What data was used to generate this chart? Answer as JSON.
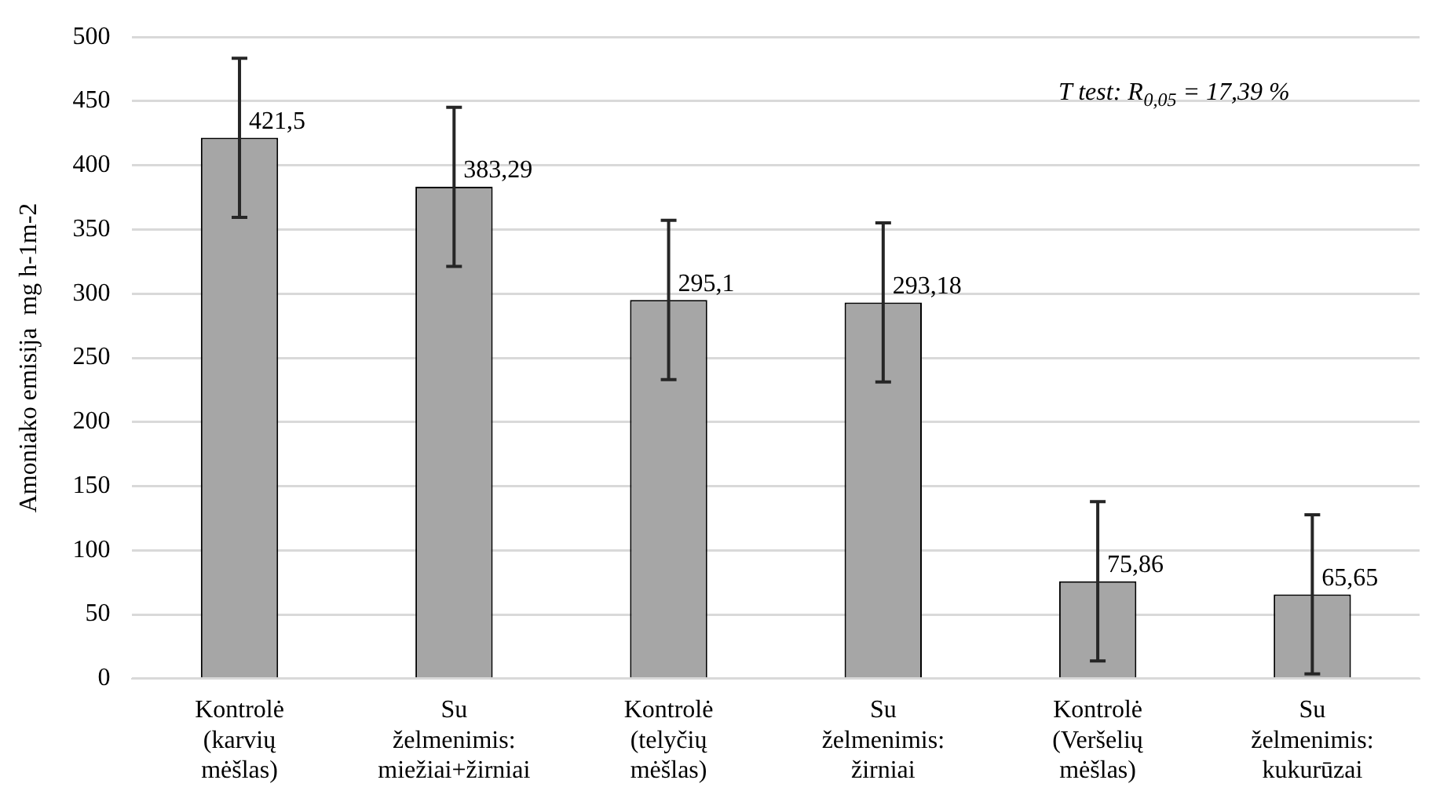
{
  "chart_data": {
    "type": "bar",
    "ylabel": "Amoniako emisija  mg h-1m-2",
    "categories": [
      "Kontrolė (karvių mėšlas)",
      "Su želmenimis: miežiai+žirniai",
      "Kontrolė (telyčių mėšlas)",
      "Su želmenimis: žirniai",
      "Kontrolė (Veršelių mėšlas)",
      "Su želmenimis: kukurūzai"
    ],
    "series": [
      {
        "color": "#a6a6a6",
        "values": [
          421.5,
          383.29,
          295.1,
          293.18,
          75.86,
          65.65
        ],
        "errors": [
          62,
          62,
          62,
          62,
          62,
          62
        ],
        "value_labels": [
          "421,5",
          "383,29",
          "295,1",
          "293,18",
          "75,86",
          "65,65"
        ]
      }
    ],
    "ylim": [
      0,
      500
    ],
    "yticks": [
      0,
      50,
      100,
      150,
      200,
      250,
      300,
      350,
      400,
      450,
      500
    ],
    "grid": "y",
    "legend": false,
    "annotations": [
      "T test: R$_{0,05}$ = 17,39 %"
    ]
  }
}
